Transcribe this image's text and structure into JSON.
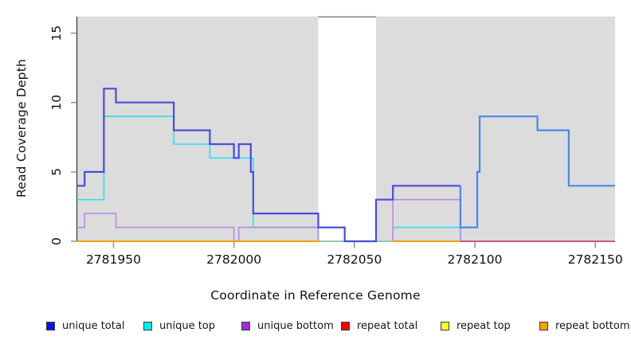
{
  "chart_data": {
    "type": "line",
    "subtype": "step-coverage",
    "title": "",
    "xlabel": "Coordinate in Reference Genome",
    "ylabel": "Read Coverage Depth",
    "x_ticks": [
      2781950,
      2782000,
      2782050,
      2782100,
      2782150
    ],
    "y_ticks": [
      0,
      5,
      10,
      15
    ],
    "xlim": [
      2781934.8,
      2782158.2
    ],
    "ylim": [
      0,
      16.2
    ],
    "grid": false,
    "panel_color": "#dcdcdc",
    "gap_region": {
      "start": 2782035,
      "end": 2782059,
      "top_border_color": "#8c8c8c"
    },
    "axis_color": "#3d3d3d",
    "tick_color": "#8a8a8a",
    "series": [
      {
        "name": "unique-top",
        "legend": "unique top",
        "color": "#2ae1ea",
        "width": 1.6,
        "steps": [
          [
            2781934.8,
            3
          ],
          [
            2781946,
            9
          ],
          [
            2781975,
            7
          ],
          [
            2781990,
            6
          ],
          [
            2782008,
            1
          ],
          [
            2782035,
            0
          ],
          [
            2782066,
            1
          ],
          [
            2782094,
            0
          ]
        ],
        "x_end": 2782158.2
      },
      {
        "name": "unique-bottom",
        "legend": "unique bottom",
        "color": "#b78cd9",
        "width": 1.6,
        "steps": [
          [
            2781934.8,
            1
          ],
          [
            2781938,
            2
          ],
          [
            2781951,
            1
          ],
          [
            2782000,
            0
          ],
          [
            2782002,
            1
          ],
          [
            2782035,
            0
          ],
          [
            2782066,
            3
          ],
          [
            2782094,
            0
          ]
        ],
        "x_end": 2782158.2
      },
      {
        "name": "repeat-bottom-zero-left",
        "legend": "repeat bottom",
        "color": "#ff9e00",
        "width": 2,
        "steps": [
          [
            2781934.8,
            0
          ]
        ],
        "x_end": 2782035
      },
      {
        "name": "zero-line-blend",
        "legend": "repeat top",
        "color": "#93cf9e",
        "width": 1.8,
        "steps": [
          [
            2782035,
            0
          ]
        ],
        "x_end": 2782066
      },
      {
        "name": "repeat-bottom-zero-mid",
        "legend": "repeat bottom",
        "color": "#ff9e00",
        "width": 2,
        "steps": [
          [
            2782066,
            0
          ]
        ],
        "x_end": 2782094
      },
      {
        "name": "repeat-total-zero-right",
        "legend": "repeat total",
        "color": "#c9547a",
        "width": 1.8,
        "steps": [
          [
            2782094,
            0
          ]
        ],
        "x_end": 2782158.2
      },
      {
        "name": "unique-total-left",
        "legend": "unique total",
        "color": "#4a4adf",
        "width": 2.2,
        "steps": [
          [
            2781934.8,
            4
          ],
          [
            2781938,
            5
          ],
          [
            2781946,
            11
          ],
          [
            2781951,
            10
          ],
          [
            2781975,
            8
          ],
          [
            2781990,
            7
          ],
          [
            2782000,
            6
          ],
          [
            2782002,
            7
          ],
          [
            2782007,
            5
          ],
          [
            2782008,
            2
          ],
          [
            2782035,
            1
          ],
          [
            2782046,
            0
          ],
          [
            2782059,
            3
          ],
          [
            2782066,
            4
          ]
        ],
        "x_end": 2782094
      },
      {
        "name": "unique-total-right",
        "legend": "unique total",
        "color": "#4c86e8",
        "width": 2.2,
        "steps": [
          [
            2782094,
            4
          ],
          [
            2782094,
            1
          ],
          [
            2782101,
            5
          ],
          [
            2782102,
            9
          ],
          [
            2782126,
            8
          ],
          [
            2782139,
            4
          ]
        ],
        "x_end": 2782158.2
      }
    ],
    "legend": {
      "position": "bottom",
      "items": [
        {
          "label": "unique total",
          "color": "#0f0fee"
        },
        {
          "label": "unique top",
          "color": "#00eeee"
        },
        {
          "label": "unique bottom",
          "color": "#9b30d3"
        },
        {
          "label": "repeat total",
          "color": "#ee0000"
        },
        {
          "label": "repeat top",
          "color": "#ffff2e"
        },
        {
          "label": "repeat bottom",
          "color": "#ff9e00"
        }
      ]
    }
  }
}
